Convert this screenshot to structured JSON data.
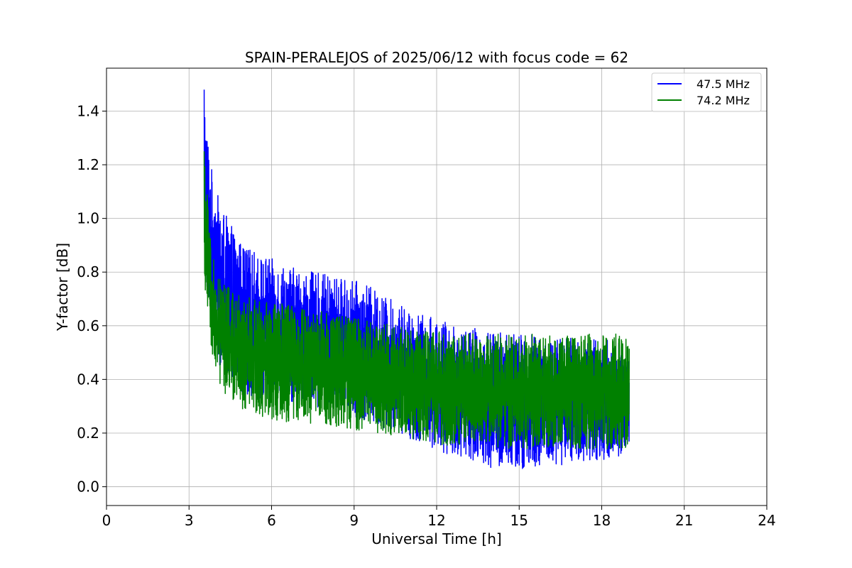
{
  "chart_data": {
    "type": "line",
    "title": "SPAIN-PERALEJOS of 2025/06/12 with focus code = 62",
    "xlabel": "Universal Time [h]",
    "ylabel": "Y-factor [dB]",
    "xlim": [
      0,
      24
    ],
    "ylim": [
      -0.07,
      1.56
    ],
    "xticks": [
      0,
      3,
      6,
      9,
      12,
      15,
      18,
      21,
      24
    ],
    "yticks": [
      0.0,
      0.2,
      0.4,
      0.6,
      0.8,
      1.0,
      1.2,
      1.4
    ],
    "ytick_labels": [
      "0.0",
      "0.2",
      "0.4",
      "0.6",
      "0.8",
      "1.0",
      "1.2",
      "1.4"
    ],
    "grid": true,
    "legend_position": "top-right",
    "series": [
      {
        "name": "47.5 MHz",
        "color": "#0000ff",
        "x": [
          3.55,
          3.6,
          3.7,
          3.8,
          3.9,
          4.0,
          4.25,
          4.5,
          4.75,
          5.0,
          5.5,
          6.0,
          6.5,
          7.0,
          7.5,
          8.0,
          8.5,
          9.0,
          9.5,
          10.0,
          10.5,
          11.0,
          11.5,
          12.0,
          12.5,
          13.0,
          13.5,
          14.0,
          14.5,
          15.0,
          15.5,
          16.0,
          16.5,
          17.0,
          17.5,
          18.0,
          18.5,
          19.0
        ],
        "y_low": [
          0.85,
          0.8,
          0.65,
          0.58,
          0.52,
          0.48,
          0.42,
          0.38,
          0.36,
          0.35,
          0.33,
          0.32,
          0.31,
          0.3,
          0.3,
          0.29,
          0.28,
          0.26,
          0.24,
          0.22,
          0.2,
          0.18,
          0.16,
          0.13,
          0.12,
          0.11,
          0.09,
          0.06,
          0.07,
          0.05,
          0.07,
          0.08,
          0.08,
          0.09,
          0.1,
          0.1,
          0.11,
          0.13
        ],
        "y_high": [
          1.48,
          1.4,
          1.3,
          1.2,
          1.15,
          1.1,
          1.03,
          0.98,
          0.93,
          0.9,
          0.87,
          0.85,
          0.83,
          0.81,
          0.8,
          0.79,
          0.78,
          0.77,
          0.75,
          0.72,
          0.69,
          0.66,
          0.64,
          0.63,
          0.61,
          0.6,
          0.59,
          0.58,
          0.58,
          0.57,
          0.57,
          0.56,
          0.56,
          0.56,
          0.55,
          0.55,
          0.55,
          0.5
        ]
      },
      {
        "name": "74.2 MHz",
        "color": "#008000",
        "x": [
          3.55,
          3.6,
          3.7,
          3.8,
          3.9,
          4.0,
          4.25,
          4.5,
          4.75,
          5.0,
          5.5,
          6.0,
          6.5,
          7.0,
          7.5,
          8.0,
          8.5,
          9.0,
          9.5,
          10.0,
          10.5,
          11.0,
          11.5,
          12.0,
          12.5,
          13.0,
          13.5,
          14.0,
          14.5,
          15.0,
          15.5,
          16.0,
          16.5,
          17.0,
          17.5,
          18.0,
          18.5,
          19.0
        ],
        "y_low": [
          0.75,
          0.7,
          0.6,
          0.52,
          0.45,
          0.4,
          0.35,
          0.32,
          0.3,
          0.28,
          0.26,
          0.25,
          0.24,
          0.24,
          0.23,
          0.23,
          0.22,
          0.21,
          0.2,
          0.2,
          0.19,
          0.18,
          0.17,
          0.16,
          0.15,
          0.15,
          0.15,
          0.15,
          0.14,
          0.14,
          0.14,
          0.14,
          0.14,
          0.14,
          0.14,
          0.14,
          0.14,
          0.14
        ],
        "y_high": [
          1.25,
          1.18,
          1.05,
          0.92,
          0.85,
          0.8,
          0.76,
          0.74,
          0.72,
          0.71,
          0.7,
          0.69,
          0.68,
          0.67,
          0.66,
          0.65,
          0.64,
          0.63,
          0.62,
          0.61,
          0.6,
          0.59,
          0.58,
          0.58,
          0.57,
          0.57,
          0.57,
          0.57,
          0.57,
          0.58,
          0.57,
          0.57,
          0.57,
          0.57,
          0.57,
          0.57,
          0.57,
          0.55
        ]
      }
    ]
  }
}
